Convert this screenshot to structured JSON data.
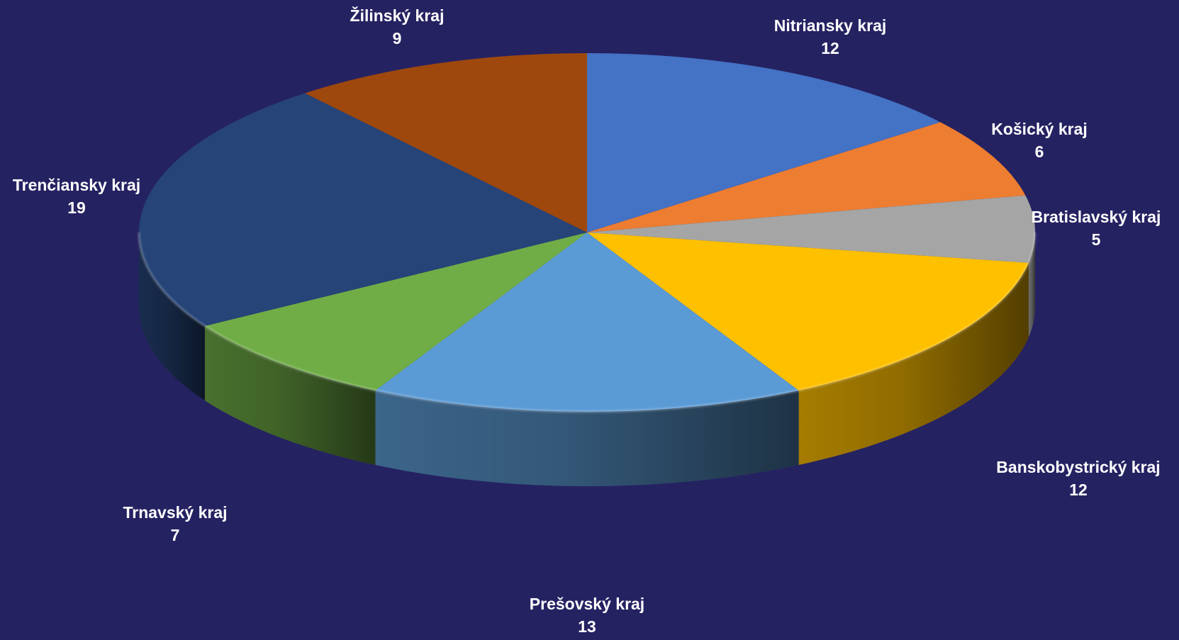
{
  "chart_data": {
    "type": "pie",
    "title": "",
    "style": "3d",
    "background": "#252262",
    "slices": [
      {
        "label": "Nitriansky kraj",
        "value": 12,
        "color": "#4472C4"
      },
      {
        "label": "Košický kraj",
        "value": 6,
        "color": "#ED7D31"
      },
      {
        "label": "Bratislavský kraj",
        "value": 5,
        "color": "#A5A5A5"
      },
      {
        "label": "Banskobystrický kraj",
        "value": 12,
        "color": "#FFC000"
      },
      {
        "label": "Prešovský kraj",
        "value": 13,
        "color": "#5B9BD5"
      },
      {
        "label": "Trnavský kraj",
        "value": 7,
        "color": "#70AD47"
      },
      {
        "label": "Trenčiansky kraj",
        "value": 19,
        "color": "#264478"
      },
      {
        "label": "Žilinský kraj",
        "value": 9,
        "color": "#9E480E"
      }
    ]
  }
}
